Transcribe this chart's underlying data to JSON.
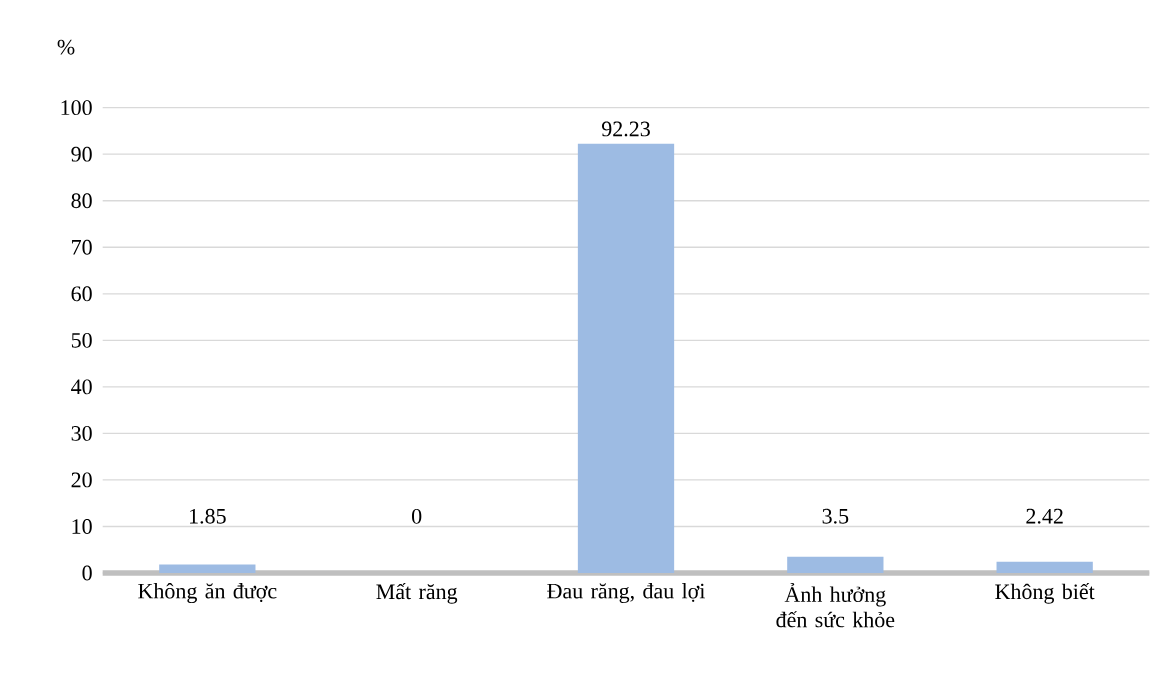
{
  "chart_data": {
    "type": "bar",
    "ylabel": "%",
    "categories": [
      "Không ăn được",
      "Mất răng",
      "Đau răng, đau lợi",
      "Ảnh hưởng đến sức khỏe",
      "Không biết"
    ],
    "values": [
      1.85,
      0,
      92.23,
      3.5,
      2.42
    ],
    "value_labels": [
      "1.85",
      "0",
      "92.23",
      "3.5",
      "2.42"
    ],
    "color": "#9dbbe3",
    "ylim": [
      0,
      100
    ],
    "yticks": [
      0,
      10,
      20,
      30,
      40,
      50,
      60,
      70,
      80,
      90,
      100
    ],
    "grid": "y"
  }
}
